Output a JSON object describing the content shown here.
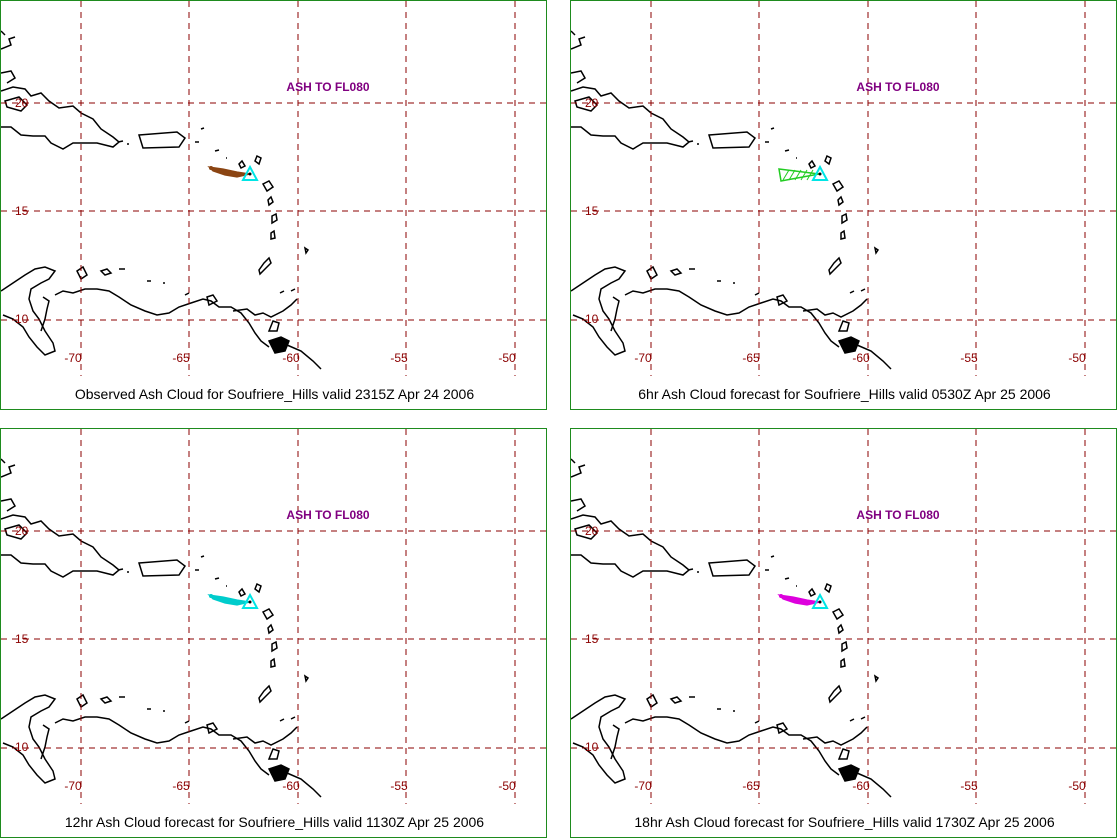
{
  "map": {
    "lat_labels": [
      "20",
      "15",
      "10"
    ],
    "lon_labels": [
      "-70",
      "-65",
      "-60",
      "-55",
      "-50"
    ],
    "grid_color": "#8b0000",
    "coast_color": "#000000",
    "volcano_marker_color": "#00e5e5"
  },
  "panels": [
    {
      "label": "ASH TO FL080",
      "caption": "Observed Ash Cloud for Soufriere_Hills valid 2315Z Apr 24 2006",
      "cloud_color": "#8b4513",
      "cloud_style": "filled-plume"
    },
    {
      "label": "ASH TO FL080",
      "caption": "6hr Ash Cloud forecast for Soufriere_Hills valid 0530Z Apr 25 2006",
      "cloud_color": "#22cc22",
      "cloud_style": "hatched-triangle"
    },
    {
      "label": "ASH TO FL080",
      "caption": "12hr Ash Cloud forecast for Soufriere_Hills valid 1130Z Apr 25 2006",
      "cloud_color": "#00cccc",
      "cloud_style": "filled-plume"
    },
    {
      "label": "ASH TO FL080",
      "caption": "18hr Ash Cloud forecast for Soufriere_Hills valid 1730Z Apr 25 2006",
      "cloud_color": "#dd00dd",
      "cloud_style": "filled-plume"
    }
  ]
}
